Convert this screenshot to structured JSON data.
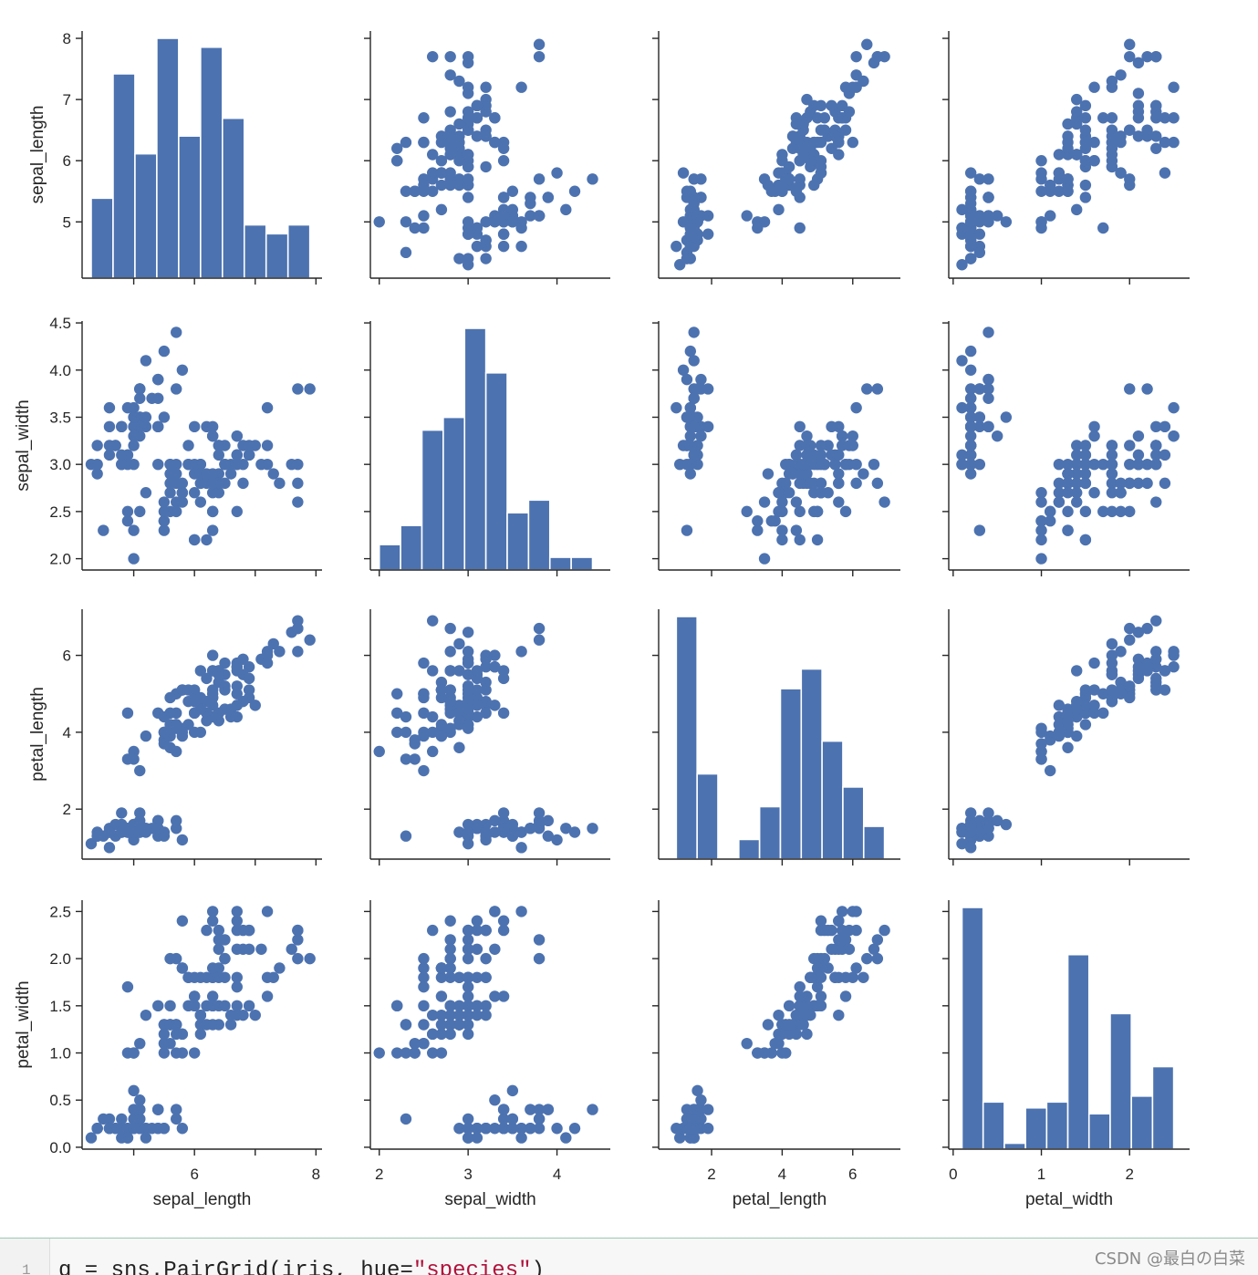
{
  "chart_data": {
    "type": "pair-grid",
    "variables": [
      "sepal_length",
      "sepal_width",
      "petal_length",
      "petal_width"
    ],
    "axis_labels": [
      "sepal_length",
      "sepal_width",
      "petal_length",
      "petal_width"
    ],
    "color": "#4c72b0",
    "ranges": [
      [
        4.08,
        8.12
      ],
      [
        1.88,
        4.52
      ],
      [
        0.7,
        7.2
      ],
      [
        -0.02,
        2.62
      ]
    ],
    "ticks": [
      [
        5,
        6,
        7,
        8
      ],
      [
        2.0,
        2.5,
        3.0,
        3.5,
        4.0,
        4.5
      ],
      [
        2,
        4,
        6
      ],
      [
        0.0,
        0.5,
        1.0,
        1.5,
        2.0,
        2.5
      ]
    ],
    "y_tick_labels": [
      [
        "5",
        "6",
        "7",
        "8"
      ],
      [
        "2.0",
        "2.5",
        "3.0",
        "3.5",
        "4.0",
        "4.5"
      ],
      [
        "2",
        "4",
        "6"
      ],
      [
        "0.0",
        "0.5",
        "1.0",
        "1.5",
        "2.0",
        "2.5"
      ]
    ],
    "x_ranges": [
      [
        4.15,
        8.1
      ],
      [
        1.9,
        4.6
      ],
      [
        0.5,
        7.35
      ],
      [
        -0.05,
        2.68
      ]
    ],
    "x_ticks": [
      [
        5,
        6,
        7,
        8
      ],
      [
        2,
        3,
        4
      ],
      [
        2,
        4,
        6
      ],
      [
        0,
        1,
        2
      ]
    ],
    "x_tick_labels": [
      [
        "",
        "6",
        "",
        "8"
      ],
      [
        "2",
        "3",
        "4"
      ],
      [
        "2",
        "4",
        "6"
      ],
      [
        "0",
        "1",
        "2"
      ]
    ],
    "histograms": [
      {
        "variable": "sepal_length",
        "edges": [
          4.3,
          4.66,
          5.02,
          5.38,
          5.74,
          6.1,
          6.46,
          6.82,
          7.18,
          7.54,
          7.9
        ],
        "counts": [
          9,
          23,
          14,
          27,
          16,
          26,
          18,
          6,
          5,
          6
        ]
      },
      {
        "variable": "sepal_width",
        "edges": [
          2.0,
          2.24,
          2.48,
          2.72,
          2.96,
          3.2,
          3.44,
          3.68,
          3.92,
          4.16,
          4.4
        ],
        "counts": [
          4,
          7,
          22,
          24,
          38,
          31,
          9,
          11,
          2,
          2
        ]
      },
      {
        "variable": "petal_length",
        "edges": [
          1.0,
          1.59,
          2.18,
          2.77,
          3.36,
          3.95,
          4.54,
          5.13,
          5.72,
          6.31,
          6.9
        ],
        "counts": [
          37,
          13,
          0,
          3,
          8,
          26,
          29,
          18,
          11,
          5
        ]
      },
      {
        "variable": "petal_width",
        "edges": [
          0.1,
          0.34,
          0.58,
          0.82,
          1.06,
          1.3,
          1.54,
          1.78,
          2.02,
          2.26,
          2.5
        ],
        "counts": [
          41,
          8,
          1,
          7,
          8,
          33,
          6,
          23,
          9,
          14
        ]
      }
    ],
    "points": [
      [
        5.1,
        3.5,
        1.4,
        0.2
      ],
      [
        4.9,
        3.0,
        1.4,
        0.2
      ],
      [
        4.7,
        3.2,
        1.3,
        0.2
      ],
      [
        4.6,
        3.1,
        1.5,
        0.2
      ],
      [
        5.0,
        3.6,
        1.4,
        0.2
      ],
      [
        5.4,
        3.9,
        1.7,
        0.4
      ],
      [
        4.6,
        3.4,
        1.4,
        0.3
      ],
      [
        5.0,
        3.4,
        1.5,
        0.2
      ],
      [
        4.4,
        2.9,
        1.4,
        0.2
      ],
      [
        4.9,
        3.1,
        1.5,
        0.1
      ],
      [
        5.4,
        3.7,
        1.5,
        0.2
      ],
      [
        4.8,
        3.4,
        1.6,
        0.2
      ],
      [
        4.8,
        3.0,
        1.4,
        0.1
      ],
      [
        4.3,
        3.0,
        1.1,
        0.1
      ],
      [
        5.8,
        4.0,
        1.2,
        0.2
      ],
      [
        5.7,
        4.4,
        1.5,
        0.4
      ],
      [
        5.4,
        3.9,
        1.3,
        0.4
      ],
      [
        5.1,
        3.5,
        1.4,
        0.3
      ],
      [
        5.7,
        3.8,
        1.7,
        0.3
      ],
      [
        5.1,
        3.8,
        1.5,
        0.3
      ],
      [
        5.4,
        3.4,
        1.7,
        0.2
      ],
      [
        5.1,
        3.7,
        1.5,
        0.4
      ],
      [
        4.6,
        3.6,
        1.0,
        0.2
      ],
      [
        5.1,
        3.3,
        1.7,
        0.5
      ],
      [
        4.8,
        3.4,
        1.9,
        0.2
      ],
      [
        5.0,
        3.0,
        1.6,
        0.2
      ],
      [
        5.0,
        3.4,
        1.6,
        0.4
      ],
      [
        5.2,
        3.5,
        1.5,
        0.2
      ],
      [
        5.2,
        3.4,
        1.4,
        0.2
      ],
      [
        4.7,
        3.2,
        1.6,
        0.2
      ],
      [
        4.8,
        3.1,
        1.6,
        0.2
      ],
      [
        5.4,
        3.4,
        1.5,
        0.4
      ],
      [
        5.2,
        4.1,
        1.5,
        0.1
      ],
      [
        5.5,
        4.2,
        1.4,
        0.2
      ],
      [
        4.9,
        3.1,
        1.5,
        0.2
      ],
      [
        5.0,
        3.2,
        1.2,
        0.2
      ],
      [
        5.5,
        3.5,
        1.3,
        0.2
      ],
      [
        4.9,
        3.6,
        1.4,
        0.1
      ],
      [
        4.4,
        3.0,
        1.3,
        0.2
      ],
      [
        5.1,
        3.4,
        1.5,
        0.2
      ],
      [
        5.0,
        3.5,
        1.3,
        0.3
      ],
      [
        4.5,
        2.3,
        1.3,
        0.3
      ],
      [
        4.4,
        3.2,
        1.3,
        0.2
      ],
      [
        5.0,
        3.5,
        1.6,
        0.6
      ],
      [
        5.1,
        3.8,
        1.9,
        0.4
      ],
      [
        4.8,
        3.0,
        1.4,
        0.3
      ],
      [
        5.1,
        3.8,
        1.6,
        0.2
      ],
      [
        4.6,
        3.2,
        1.4,
        0.2
      ],
      [
        5.3,
        3.7,
        1.5,
        0.2
      ],
      [
        5.0,
        3.3,
        1.4,
        0.2
      ],
      [
        7.0,
        3.2,
        4.7,
        1.4
      ],
      [
        6.4,
        3.2,
        4.5,
        1.5
      ],
      [
        6.9,
        3.1,
        4.9,
        1.5
      ],
      [
        5.5,
        2.3,
        4.0,
        1.3
      ],
      [
        6.5,
        2.8,
        4.6,
        1.5
      ],
      [
        5.7,
        2.8,
        4.5,
        1.3
      ],
      [
        6.3,
        3.3,
        4.7,
        1.6
      ],
      [
        4.9,
        2.4,
        3.3,
        1.0
      ],
      [
        6.6,
        2.9,
        4.6,
        1.3
      ],
      [
        5.2,
        2.7,
        3.9,
        1.4
      ],
      [
        5.0,
        2.0,
        3.5,
        1.0
      ],
      [
        5.9,
        3.0,
        4.2,
        1.5
      ],
      [
        6.0,
        2.2,
        4.0,
        1.0
      ],
      [
        6.1,
        2.9,
        4.7,
        1.4
      ],
      [
        5.6,
        2.9,
        3.6,
        1.3
      ],
      [
        6.7,
        3.1,
        4.4,
        1.4
      ],
      [
        5.6,
        3.0,
        4.5,
        1.5
      ],
      [
        5.8,
        2.7,
        4.1,
        1.0
      ],
      [
        6.2,
        2.2,
        4.5,
        1.5
      ],
      [
        5.6,
        2.5,
        3.9,
        1.1
      ],
      [
        5.9,
        3.2,
        4.8,
        1.8
      ],
      [
        6.1,
        2.8,
        4.0,
        1.3
      ],
      [
        6.3,
        2.5,
        4.9,
        1.5
      ],
      [
        6.1,
        2.8,
        4.7,
        1.2
      ],
      [
        6.4,
        2.9,
        4.3,
        1.3
      ],
      [
        6.6,
        3.0,
        4.4,
        1.4
      ],
      [
        6.8,
        2.8,
        4.8,
        1.4
      ],
      [
        6.7,
        3.0,
        5.0,
        1.7
      ],
      [
        6.0,
        2.9,
        4.5,
        1.5
      ],
      [
        5.7,
        2.6,
        3.5,
        1.0
      ],
      [
        5.5,
        2.4,
        3.8,
        1.1
      ],
      [
        5.5,
        2.4,
        3.7,
        1.0
      ],
      [
        5.8,
        2.7,
        3.9,
        1.2
      ],
      [
        6.0,
        2.7,
        5.1,
        1.6
      ],
      [
        5.4,
        3.0,
        4.5,
        1.5
      ],
      [
        6.0,
        3.4,
        4.5,
        1.6
      ],
      [
        6.7,
        3.1,
        4.7,
        1.5
      ],
      [
        6.3,
        2.3,
        4.4,
        1.3
      ],
      [
        5.6,
        3.0,
        4.1,
        1.3
      ],
      [
        5.5,
        2.5,
        4.0,
        1.3
      ],
      [
        5.5,
        2.6,
        4.4,
        1.2
      ],
      [
        6.1,
        3.0,
        4.6,
        1.4
      ],
      [
        5.8,
        2.6,
        4.0,
        1.2
      ],
      [
        5.0,
        2.3,
        3.3,
        1.0
      ],
      [
        5.6,
        2.7,
        4.2,
        1.3
      ],
      [
        5.7,
        3.0,
        4.2,
        1.2
      ],
      [
        5.7,
        2.9,
        4.2,
        1.3
      ],
      [
        6.2,
        2.9,
        4.3,
        1.3
      ],
      [
        5.1,
        2.5,
        3.0,
        1.1
      ],
      [
        5.7,
        2.8,
        4.1,
        1.3
      ],
      [
        6.3,
        3.3,
        6.0,
        2.5
      ],
      [
        5.8,
        2.7,
        5.1,
        1.9
      ],
      [
        7.1,
        3.0,
        5.9,
        2.1
      ],
      [
        6.3,
        2.9,
        5.6,
        1.8
      ],
      [
        6.5,
        3.0,
        5.8,
        2.2
      ],
      [
        7.6,
        3.0,
        6.6,
        2.1
      ],
      [
        4.9,
        2.5,
        4.5,
        1.7
      ],
      [
        7.3,
        2.9,
        6.3,
        1.8
      ],
      [
        6.7,
        2.5,
        5.8,
        1.8
      ],
      [
        7.2,
        3.6,
        6.1,
        2.5
      ],
      [
        6.5,
        3.2,
        5.1,
        2.0
      ],
      [
        6.4,
        2.7,
        5.3,
        1.9
      ],
      [
        6.8,
        3.0,
        5.5,
        2.1
      ],
      [
        5.7,
        2.5,
        5.0,
        2.0
      ],
      [
        5.8,
        2.8,
        5.1,
        2.4
      ],
      [
        6.4,
        3.2,
        5.3,
        2.3
      ],
      [
        6.5,
        3.0,
        5.5,
        1.8
      ],
      [
        7.7,
        3.8,
        6.7,
        2.2
      ],
      [
        7.7,
        2.6,
        6.9,
        2.3
      ],
      [
        6.0,
        2.2,
        5.0,
        1.5
      ],
      [
        6.9,
        3.2,
        5.7,
        2.3
      ],
      [
        5.6,
        2.8,
        4.9,
        2.0
      ],
      [
        7.7,
        2.8,
        6.7,
        2.0
      ],
      [
        6.3,
        2.7,
        4.9,
        1.8
      ],
      [
        6.7,
        3.3,
        5.7,
        2.1
      ],
      [
        7.2,
        3.2,
        6.0,
        1.8
      ],
      [
        6.2,
        2.8,
        4.8,
        1.8
      ],
      [
        6.1,
        3.0,
        4.9,
        1.8
      ],
      [
        6.4,
        2.8,
        5.6,
        2.1
      ],
      [
        7.2,
        3.0,
        5.8,
        1.6
      ],
      [
        7.4,
        2.8,
        6.1,
        1.9
      ],
      [
        7.9,
        3.8,
        6.4,
        2.0
      ],
      [
        6.4,
        2.8,
        5.6,
        2.2
      ],
      [
        6.3,
        2.8,
        5.1,
        1.5
      ],
      [
        6.1,
        2.6,
        5.6,
        1.4
      ],
      [
        7.7,
        3.0,
        6.1,
        2.3
      ],
      [
        6.3,
        3.4,
        5.6,
        2.4
      ],
      [
        6.4,
        3.1,
        5.5,
        1.8
      ],
      [
        6.0,
        3.0,
        4.8,
        1.8
      ],
      [
        6.9,
        3.1,
        5.4,
        2.1
      ],
      [
        6.7,
        3.1,
        5.6,
        2.4
      ],
      [
        6.9,
        3.1,
        5.1,
        2.3
      ],
      [
        5.8,
        2.7,
        5.1,
        1.9
      ],
      [
        6.8,
        3.2,
        5.9,
        2.3
      ],
      [
        6.7,
        3.3,
        5.7,
        2.5
      ],
      [
        6.7,
        3.0,
        5.2,
        2.3
      ],
      [
        6.3,
        2.5,
        5.0,
        1.9
      ],
      [
        6.5,
        3.0,
        5.2,
        2.0
      ],
      [
        6.2,
        3.4,
        5.4,
        2.3
      ],
      [
        5.9,
        3.0,
        5.1,
        1.8
      ]
    ]
  },
  "code": {
    "line_number": "1",
    "prefix": "g = sns.PairGrid(iris, hue=",
    "string": "\"species\"",
    "suffix": ")"
  },
  "watermark": "CSDN @最白の白菜"
}
